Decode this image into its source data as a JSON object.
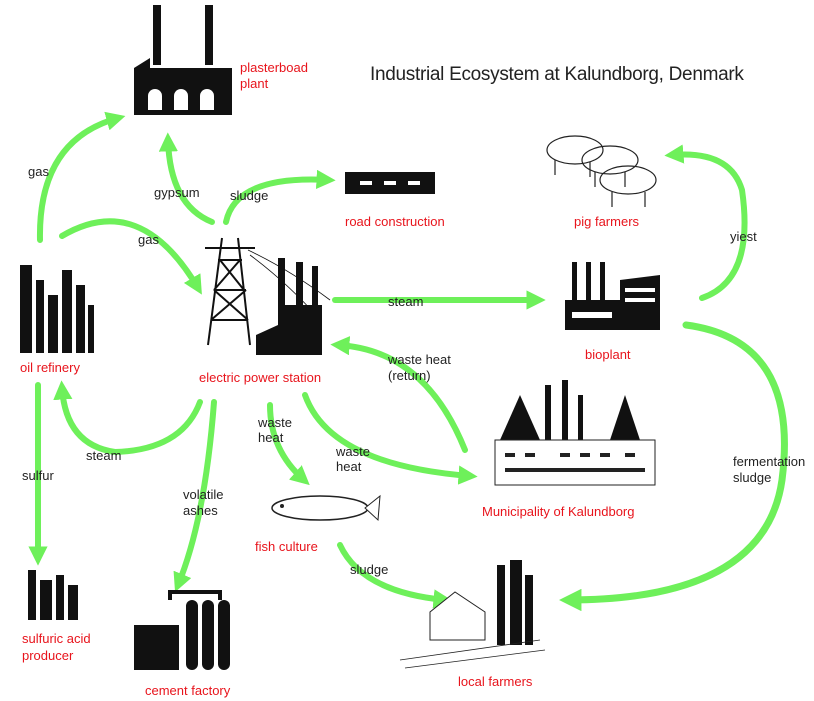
{
  "title": "Industrial Ecosystem at Kalundborg, Denmark",
  "nodes": [
    {
      "label": [
        "plasterboad",
        "plant"
      ]
    },
    {
      "label": [
        "road construction"
      ]
    },
    {
      "label": [
        "pig farmers"
      ]
    },
    {
      "label": [
        "bioplant"
      ]
    },
    {
      "label": [
        "oil refinery"
      ]
    },
    {
      "label": [
        "electric power station"
      ]
    },
    {
      "label": [
        "Municipality of Kalundborg"
      ]
    },
    {
      "label": [
        "fish culture"
      ]
    },
    {
      "label": [
        "sulfuric acid",
        "producer"
      ]
    },
    {
      "label": [
        "cement factory"
      ]
    },
    {
      "label": [
        "local farmers"
      ]
    }
  ],
  "edges": [
    {
      "label": [
        "gas"
      ]
    },
    {
      "label": [
        "gypsum"
      ]
    },
    {
      "label": [
        "sludge"
      ]
    },
    {
      "label": [
        "gas"
      ]
    },
    {
      "label": [
        "steam"
      ]
    },
    {
      "label": [
        "waste heat",
        "(return)"
      ]
    },
    {
      "label": [
        "yiest"
      ]
    },
    {
      "label": [
        "fermentation",
        "sludge"
      ]
    },
    {
      "label": [
        "sulfur"
      ]
    },
    {
      "label": [
        "steam"
      ]
    },
    {
      "label": [
        "waste",
        "heat"
      ]
    },
    {
      "label": [
        "waste",
        "heat"
      ]
    },
    {
      "label": [
        "volatile",
        "ashes"
      ]
    },
    {
      "label": [
        "sludge"
      ]
    }
  ]
}
